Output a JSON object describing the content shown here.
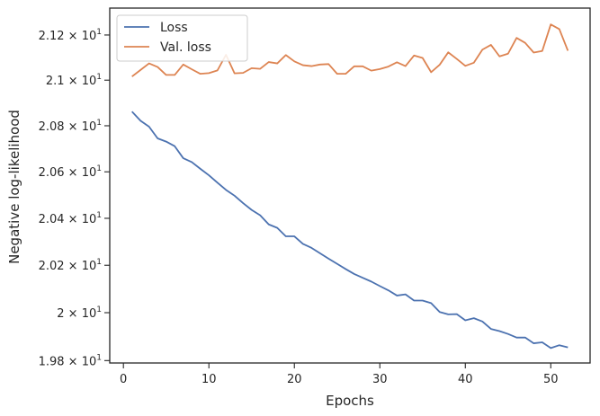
{
  "chart_data": {
    "type": "line",
    "title": "",
    "xlabel": "Epochs",
    "ylabel": "Negative log-likelihood",
    "xlim": [
      -1.6,
      54.6
    ],
    "ylim": [
      19.79,
      21.32
    ],
    "yscale": "log",
    "xticks": [
      0,
      10,
      20,
      30,
      40,
      50
    ],
    "yticks": [
      19.8,
      20.0,
      20.2,
      20.4,
      20.6,
      20.8,
      21.0,
      21.2
    ],
    "ytick_labels": [
      {
        "mant": "1.98",
        "exp": "1"
      },
      {
        "mant": "2",
        "exp": "1"
      },
      {
        "mant": "2.02",
        "exp": "1"
      },
      {
        "mant": "2.04",
        "exp": "1"
      },
      {
        "mant": "2.06",
        "exp": "1"
      },
      {
        "mant": "2.08",
        "exp": "1"
      },
      {
        "mant": "2.1",
        "exp": "1"
      },
      {
        "mant": "2.12",
        "exp": "1"
      }
    ],
    "legend_position": "top-left",
    "grid": false,
    "x": [
      1,
      2,
      3,
      4,
      5,
      6,
      7,
      8,
      9,
      10,
      11,
      12,
      13,
      14,
      15,
      16,
      17,
      18,
      19,
      20,
      21,
      22,
      23,
      24,
      25,
      26,
      27,
      28,
      29,
      30,
      31,
      32,
      33,
      34,
      35,
      36,
      37,
      38,
      39,
      40,
      41,
      42,
      43,
      44,
      45,
      46,
      47,
      48,
      49,
      50,
      51,
      52
    ],
    "series": [
      {
        "name": "Loss",
        "color": "#4c72b0",
        "values": [
          20.862,
          20.822,
          20.796,
          20.745,
          20.731,
          20.711,
          20.659,
          20.642,
          20.613,
          20.585,
          20.553,
          20.522,
          20.497,
          20.465,
          20.436,
          20.413,
          20.374,
          20.359,
          20.323,
          20.323,
          20.291,
          20.274,
          20.251,
          20.228,
          20.206,
          20.184,
          20.163,
          20.147,
          20.131,
          20.112,
          20.094,
          20.072,
          20.077,
          20.051,
          20.051,
          20.04,
          20.003,
          19.993,
          19.994,
          19.968,
          19.977,
          19.963,
          19.932,
          19.923,
          19.911,
          19.896,
          19.896,
          19.872,
          19.876,
          19.852,
          19.864,
          19.855
        ]
      },
      {
        "name": "Val. loss",
        "color": "#dd8452",
        "values": [
          21.016,
          21.045,
          21.074,
          21.058,
          21.023,
          21.023,
          21.069,
          21.048,
          21.028,
          21.031,
          21.043,
          21.112,
          21.03,
          21.032,
          21.053,
          21.05,
          21.08,
          21.074,
          21.111,
          21.083,
          21.066,
          21.062,
          21.069,
          21.071,
          21.028,
          21.028,
          21.061,
          21.061,
          21.042,
          21.049,
          21.06,
          21.079,
          21.062,
          21.109,
          21.098,
          21.035,
          21.068,
          21.123,
          21.094,
          21.063,
          21.077,
          21.135,
          21.156,
          21.105,
          21.117,
          21.187,
          21.165,
          21.122,
          21.129,
          21.247,
          21.226,
          21.13
        ]
      }
    ]
  }
}
